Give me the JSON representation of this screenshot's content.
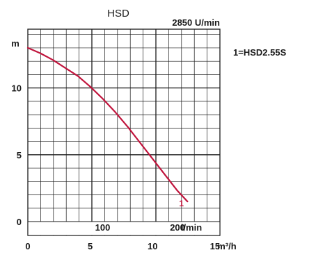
{
  "chart_data": {
    "type": "line",
    "title": "HSD",
    "speed_label": "2850 U/min",
    "y_unit": "m",
    "x_unit_lmin": "l/min",
    "x_unit_m3h": "m³/h",
    "ylim": [
      0,
      14.4
    ],
    "xlim_m3h": [
      0,
      15.4
    ],
    "x_ticks_m3h": [
      0,
      5,
      10,
      15
    ],
    "x_ticks_lmin": [
      100,
      200
    ],
    "y_ticks": [
      0,
      5,
      10
    ],
    "grid": true,
    "legend": {
      "position": "right",
      "text": "1=HSD2.55S",
      "color": "#c0143c"
    },
    "series": [
      {
        "name": "1",
        "color": "#c0143c",
        "x": [
          0,
          1,
          2,
          3,
          4,
          5,
          6,
          7,
          8,
          9,
          10,
          11,
          12,
          12.8
        ],
        "y": [
          13.0,
          12.6,
          12.1,
          11.5,
          10.9,
          10.1,
          9.2,
          8.2,
          7.1,
          5.9,
          4.7,
          3.5,
          2.3,
          1.5
        ]
      }
    ]
  }
}
